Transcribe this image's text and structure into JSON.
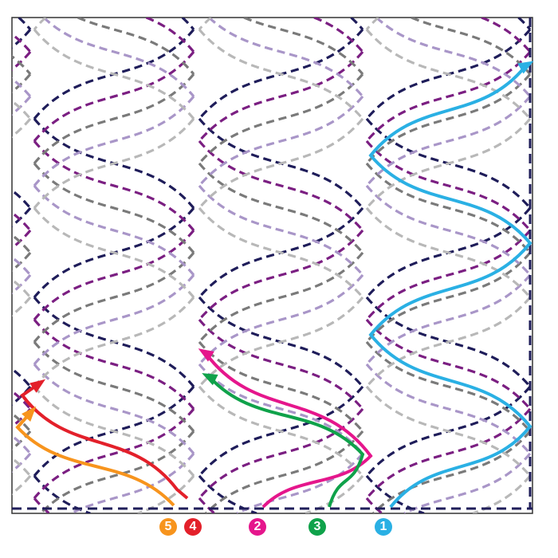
{
  "pattern_colors": [
    "#1f1d5a",
    "#7b1f82",
    "#7a7a7a",
    "#a996c8",
    "#b8b8b8"
  ],
  "border_color": "#1f1d5a",
  "routes": [
    {
      "label": "1",
      "color": "#2ab0e4"
    },
    {
      "label": "2",
      "color": "#e5168c"
    },
    {
      "label": "3",
      "color": "#0fa24a"
    },
    {
      "label": "4",
      "color": "#e3202a"
    },
    {
      "label": "5",
      "color": "#f7941d"
    }
  ]
}
